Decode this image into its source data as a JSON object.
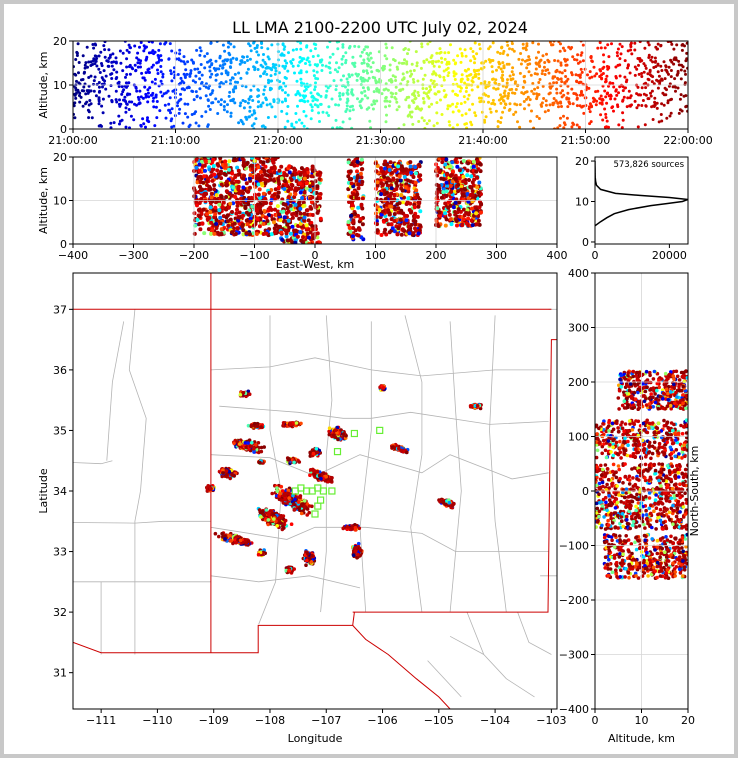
{
  "title": "LL LMA 2100-2200 UTC July 02, 2024",
  "source_count_label": "573,826 sources",
  "colors": {
    "frame": "#000000",
    "state_border": "#cc0000",
    "county_border": "#b4b4b4",
    "station": "#66ee33",
    "grid": "#d6d6d6"
  },
  "chart_data": [
    {
      "panel": "altitude-time",
      "type": "scatter",
      "ylabel": "Altitude, km",
      "ylim": [
        0,
        20
      ],
      "yticks": [
        0,
        10,
        20
      ],
      "xlim": [
        "21:00:00",
        "22:00:00"
      ],
      "xtick_labels": [
        "21:00:00",
        "21:10:00",
        "21:20:00",
        "21:30:00",
        "21:40:00",
        "21:50:00",
        "22:00:00"
      ],
      "color_by": "time",
      "colormap": "jet"
    },
    {
      "panel": "altitude-eastwest",
      "type": "scatter",
      "xlabel": "East-West, km",
      "ylabel": "Altitude, km",
      "xlim": [
        -400,
        400
      ],
      "ylim": [
        0,
        20
      ],
      "xticks": [
        -400,
        -300,
        -200,
        -100,
        0,
        100,
        200,
        300,
        400
      ],
      "yticks": [
        0,
        10,
        20
      ],
      "clusters": [
        {
          "x": [
            -200,
            -120
          ],
          "alt": [
            2,
            20
          ]
        },
        {
          "x": [
            -120,
            -60
          ],
          "alt": [
            2,
            20
          ]
        },
        {
          "x": [
            -60,
            10
          ],
          "alt": [
            0,
            18
          ]
        },
        {
          "x": [
            55,
            80
          ],
          "alt": [
            1,
            20
          ]
        },
        {
          "x": [
            100,
            175
          ],
          "alt": [
            2,
            19
          ]
        },
        {
          "x": [
            200,
            275
          ],
          "alt": [
            4,
            20
          ]
        }
      ]
    },
    {
      "panel": "altitude-histogram",
      "type": "line",
      "xlim": [
        0,
        25000
      ],
      "ylim": [
        0,
        20
      ],
      "xticks": [
        0,
        20000
      ],
      "yticks": [
        0,
        10,
        20
      ],
      "alt": [
        4,
        5,
        6,
        7,
        8,
        9,
        9.5,
        10,
        10.5,
        11,
        11.5,
        12,
        13,
        14,
        15,
        16,
        17,
        18,
        19,
        20
      ],
      "count": [
        0,
        1500,
        3200,
        5200,
        9000,
        15000,
        19500,
        23500,
        25000,
        20000,
        12000,
        5500,
        1500,
        400,
        150,
        60,
        30,
        15,
        5,
        0
      ]
    },
    {
      "panel": "plan-view-map",
      "type": "scatter",
      "xlabel": "Longitude",
      "ylabel": "Latitude",
      "xlim": [
        -111.5,
        -102.9
      ],
      "ylim": [
        30.4,
        37.6
      ],
      "xticks": [
        -111,
        -110,
        -109,
        -108,
        -107,
        -106,
        -105,
        -104,
        -103
      ],
      "yticks": [
        31,
        32,
        33,
        34,
        35,
        36,
        37
      ],
      "stations": [
        {
          "lon": -107.55,
          "lat": 34.0
        },
        {
          "lon": -107.45,
          "lat": 34.05
        },
        {
          "lon": -107.35,
          "lat": 34.0
        },
        {
          "lon": -107.25,
          "lat": 34.0
        },
        {
          "lon": -107.15,
          "lat": 34.05
        },
        {
          "lon": -107.05,
          "lat": 34.0
        },
        {
          "lon": -106.9,
          "lat": 34.0
        },
        {
          "lon": -107.1,
          "lat": 33.85
        },
        {
          "lon": -107.15,
          "lat": 33.75
        },
        {
          "lon": -107.2,
          "lat": 33.62
        },
        {
          "lon": -106.8,
          "lat": 34.65
        },
        {
          "lon": -106.5,
          "lat": 34.95
        },
        {
          "lon": -106.05,
          "lat": 35.0
        }
      ],
      "storms": [
        {
          "lon": -107.6,
          "lat": 33.85,
          "w": 1.0,
          "h": 0.35,
          "rot": -30
        },
        {
          "lon": -107.95,
          "lat": 33.55,
          "w": 0.8,
          "h": 0.3,
          "rot": -30
        },
        {
          "lon": -108.6,
          "lat": 33.2,
          "w": 0.9,
          "h": 0.18,
          "rot": -15
        },
        {
          "lon": -107.1,
          "lat": 34.25,
          "w": 0.6,
          "h": 0.2,
          "rot": -20
        },
        {
          "lon": -106.8,
          "lat": 34.95,
          "w": 0.45,
          "h": 0.25,
          "rot": -20
        },
        {
          "lon": -108.4,
          "lat": 34.75,
          "w": 0.7,
          "h": 0.22,
          "rot": -15
        },
        {
          "lon": -108.75,
          "lat": 34.3,
          "w": 0.45,
          "h": 0.2,
          "rot": -15
        },
        {
          "lon": -107.2,
          "lat": 34.65,
          "w": 0.3,
          "h": 0.18,
          "rot": 0
        },
        {
          "lon": -107.6,
          "lat": 35.1,
          "w": 0.45,
          "h": 0.1,
          "rot": 0
        },
        {
          "lon": -108.25,
          "lat": 35.08,
          "w": 0.35,
          "h": 0.12,
          "rot": 0
        },
        {
          "lon": -107.6,
          "lat": 34.5,
          "w": 0.3,
          "h": 0.12,
          "rot": 0
        },
        {
          "lon": -107.3,
          "lat": 32.9,
          "w": 0.25,
          "h": 0.3,
          "rot": 0
        },
        {
          "lon": -106.45,
          "lat": 33.0,
          "w": 0.25,
          "h": 0.3,
          "rot": 0
        },
        {
          "lon": -106.55,
          "lat": 33.4,
          "w": 0.35,
          "h": 0.12,
          "rot": 0
        },
        {
          "lon": -105.7,
          "lat": 34.7,
          "w": 0.5,
          "h": 0.12,
          "rot": -20
        },
        {
          "lon": -104.85,
          "lat": 33.8,
          "w": 0.4,
          "h": 0.15,
          "rot": -20
        },
        {
          "lon": -104.35,
          "lat": 35.4,
          "w": 0.25,
          "h": 0.08,
          "rot": 0
        },
        {
          "lon": -108.45,
          "lat": 35.6,
          "w": 0.25,
          "h": 0.1,
          "rot": 0
        },
        {
          "lon": -109.05,
          "lat": 34.05,
          "w": 0.2,
          "h": 0.15,
          "rot": 0
        },
        {
          "lon": -108.15,
          "lat": 32.98,
          "w": 0.15,
          "h": 0.15,
          "rot": 0
        },
        {
          "lon": -107.65,
          "lat": 32.7,
          "w": 0.2,
          "h": 0.15,
          "rot": 0
        },
        {
          "lon": -106.0,
          "lat": 35.7,
          "w": 0.15,
          "h": 0.12,
          "rot": 0
        },
        {
          "lon": -108.15,
          "lat": 34.48,
          "w": 0.15,
          "h": 0.08,
          "rot": 0
        }
      ]
    },
    {
      "panel": "northsouth-altitude",
      "type": "scatter",
      "xlabel": "Altitude, km",
      "ylabel": "North-South, km",
      "xlim": [
        0,
        20
      ],
      "ylim": [
        -400,
        400
      ],
      "xticks": [
        0,
        10,
        20
      ],
      "yticks": [
        -400,
        -300,
        -200,
        -100,
        0,
        100,
        200,
        300,
        400
      ],
      "bands": [
        {
          "ns": [
            150,
            220
          ],
          "alt": [
            5,
            20
          ]
        },
        {
          "ns": [
            60,
            130
          ],
          "alt": [
            0,
            20
          ]
        },
        {
          "ns": [
            -70,
            50
          ],
          "alt": [
            0,
            20
          ]
        },
        {
          "ns": [
            -160,
            -80
          ],
          "alt": [
            2,
            20
          ]
        }
      ]
    }
  ]
}
